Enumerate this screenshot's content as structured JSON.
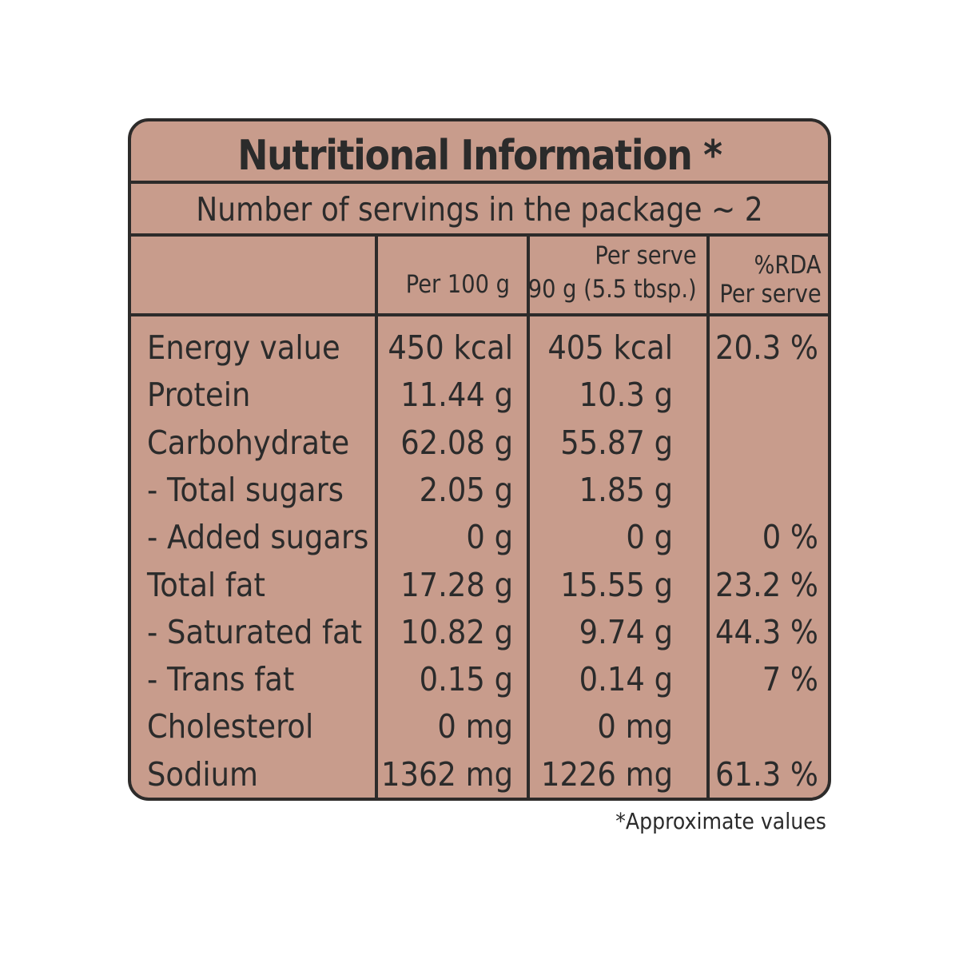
{
  "title": "Nutritional Information *",
  "servings": "Number of servings in the package ~ 2",
  "headers": {
    "per100": "Per 100 g",
    "perServeLine1": "Per serve",
    "perServeLine2": "90 g (5.5 tbsp.)",
    "rdaLine1": "%RDA",
    "rdaLine2": "Per serve"
  },
  "rows": [
    {
      "label": "Energy value",
      "per100": "450 kcal",
      "perServe": "405 kcal",
      "rda": "20.3 %"
    },
    {
      "label": "Protein",
      "per100": "11.44 g",
      "perServe": "10.3 g",
      "rda": ""
    },
    {
      "label": "Carbohydrate",
      "per100": "62.08 g",
      "perServe": "55.87 g",
      "rda": ""
    },
    {
      "label": "- Total sugars",
      "per100": "2.05 g",
      "perServe": "1.85 g",
      "rda": ""
    },
    {
      "label": "- Added sugars",
      "per100": "0 g",
      "perServe": "0 g",
      "rda": "0 %"
    },
    {
      "label": "Total fat",
      "per100": "17.28 g",
      "perServe": "15.55 g",
      "rda": "23.2 %"
    },
    {
      "label": "- Saturated fat",
      "per100": "10.82 g",
      "perServe": "9.74 g",
      "rda": "44.3 %"
    },
    {
      "label": "- Trans fat",
      "per100": "0.15 g",
      "perServe": "0.14 g",
      "rda": "7 %"
    },
    {
      "label": "Cholesterol",
      "per100": "0 mg",
      "perServe": "0 mg",
      "rda": ""
    },
    {
      "label": "Sodium",
      "per100": "1362 mg",
      "perServe": "1226 mg",
      "rda": "61.3 %"
    }
  ],
  "footnote": "*Approximate values",
  "colors": {
    "panel": "#c89c8c",
    "ink": "#2b2b2b",
    "border": "#2d2b2a"
  }
}
